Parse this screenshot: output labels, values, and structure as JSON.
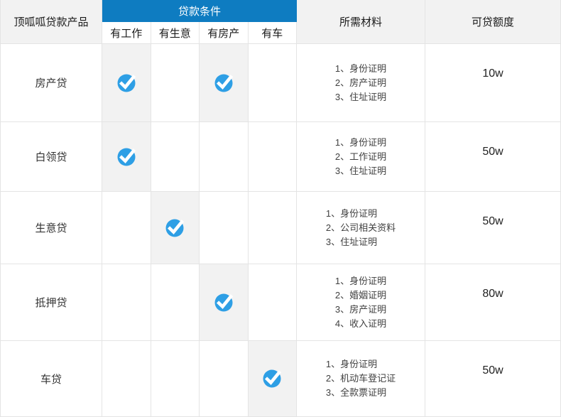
{
  "table": {
    "header": {
      "product_col": "顶呱呱贷款产品",
      "conditions_group": "贷款条件",
      "condition_cols": [
        "有工作",
        "有生意",
        "有房产",
        "有车"
      ],
      "materials_col": "所需材料",
      "amount_col": "可贷额度"
    },
    "rows": [
      {
        "product": "房产贷",
        "conditions": [
          true,
          false,
          true,
          false
        ],
        "materials": [
          "1、身份证明",
          "2、房产证明",
          "3、住址证明"
        ],
        "amount": "10w"
      },
      {
        "product": "白领贷",
        "conditions": [
          true,
          false,
          false,
          false
        ],
        "materials": [
          "1、身份证明",
          "2、工作证明",
          "3、住址证明"
        ],
        "amount": "50w"
      },
      {
        "product": "生意贷",
        "conditions": [
          false,
          true,
          false,
          false
        ],
        "materials": [
          "1、身份证明",
          "2、公司相关资料",
          "3、住址证明"
        ],
        "amount": "50w"
      },
      {
        "product": "抵押贷",
        "conditions": [
          false,
          false,
          true,
          false
        ],
        "materials": [
          "1、身份证明",
          "2、婚姻证明",
          "3、房产证明",
          "4、收入证明"
        ],
        "amount": "80w"
      },
      {
        "product": "车贷",
        "conditions": [
          false,
          false,
          false,
          true
        ],
        "materials": [
          "1、身份证明",
          "2、机动车登记证",
          "3、全款票证明"
        ],
        "amount": "50w"
      }
    ],
    "colors": {
      "header_blue": "#0e7cc1",
      "check_blue": "#2e9fe5",
      "cell_gray": "#f2f2f2",
      "border": "#e4e4e4"
    }
  }
}
